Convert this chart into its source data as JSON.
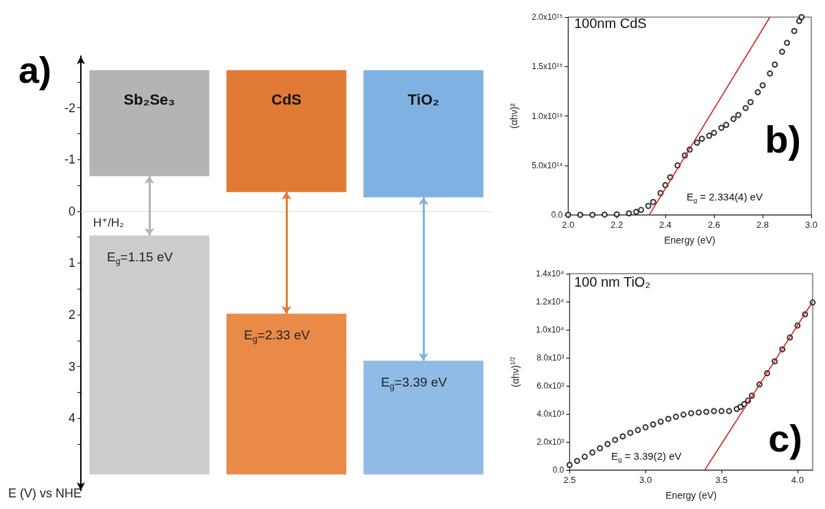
{
  "chart_data": [
    {
      "type": "bar",
      "title": "a)",
      "ylabel": "E (V) vs NHE",
      "categories": [
        "Sb₂Se₃",
        "CdS",
        "TiO₂"
      ],
      "series": [
        {
          "values": [
            2.05,
            2.36,
            2.46
          ],
          "base": [
            -2.73,
            -2.73,
            -2.73
          ],
          "colors": [
            "#b4b4b4",
            "#e07a34",
            "#7fb2e2"
          ]
        },
        {
          "values": [
            4.62,
            3.11,
            2.2
          ],
          "base": [
            0.47,
            1.98,
            2.89
          ],
          "colors": [
            "#cccccc",
            "#e98a48",
            "#8fbbe6"
          ]
        }
      ],
      "ylim": [
        5.4,
        -3.0
      ],
      "yticks": [
        {
          "value": -2.5,
          "label": null
        },
        -2,
        {
          "value": -1.5,
          "label": null
        },
        -1,
        {
          "value": -0.5,
          "label": null
        },
        0,
        {
          "value": 0.5,
          "label": null
        },
        1,
        {
          "value": 1.5,
          "label": null
        },
        2,
        {
          "value": 2.5,
          "label": null
        },
        3,
        {
          "value": 3.5,
          "label": null
        },
        4,
        {
          "value": 4.5,
          "label": null
        }
      ],
      "ref_lines": [
        {
          "axis": "y",
          "value": 0,
          "label": "H⁺/H₂",
          "line_style": "dotted",
          "color": "#bbbbbb"
        }
      ],
      "annotations": [
        {
          "text": "E$_{g}$=1.15 eV",
          "x": "Sb₂Se₃",
          "y": 0.47
        },
        {
          "text": "E$_{g}$=2.33 eV",
          "x": "CdS",
          "y": 1.98
        },
        {
          "text": "E$_{g}$=3.39 eV",
          "x": "TiO₂",
          "y": 2.89
        }
      ],
      "grid": false
    },
    {
      "type": "scatter",
      "title": "b)",
      "xlabel": "Energy (eV)",
      "ylabel": "(αhν)²",
      "grid": false,
      "annotations": [
        "100nm CdS",
        "E$_{g}$ = 2.334(4) eV"
      ],
      "xlim": [
        2,
        3
      ],
      "xticks": [
        {
          "value": 2,
          "label": "2.0"
        },
        2.2,
        2.4,
        2.6,
        2.8,
        {
          "value": 3,
          "label": "3.0"
        }
      ],
      "ylim": [
        0,
        2000000000000000.0
      ],
      "yticks": [
        {
          "value": 0,
          "label": "0.0"
        },
        {
          "value": 500000000000000.0,
          "label": "5.0x10¹⁴"
        },
        {
          "value": 1000000000000000.0,
          "label": "1.0x10¹⁵"
        },
        {
          "value": 1500000000000000.0,
          "label": "1.5x10¹⁵"
        },
        {
          "value": 2000000000000000.0,
          "label": "2.0x10¹⁵"
        }
      ],
      "series": [
        {
          "color": "#000000",
          "marker": "circle",
          "x": [
            2.0,
            2.05,
            2.1,
            2.15,
            2.2,
            2.25,
            2.28,
            2.3,
            2.33,
            2.35,
            2.38,
            2.4,
            2.42,
            2.45,
            2.48,
            2.5,
            2.53,
            2.55,
            2.58,
            2.6,
            2.63,
            2.65,
            2.68,
            2.7,
            2.73,
            2.75,
            2.78,
            2.8,
            2.83,
            2.85,
            2.88,
            2.9,
            2.93,
            2.95,
            2.96
          ],
          "values": [
            0,
            0,
            0,
            2000000000000.0,
            5000000000000.0,
            15000000000000.0,
            30000000000000.0,
            50000000000000.0,
            90000000000000.0,
            130000000000000.0,
            220000000000000.0,
            300000000000000.0,
            380000000000000.0,
            500000000000000.0,
            600000000000000.0,
            660000000000000.0,
            730000000000000.0,
            770000000000000.0,
            800000000000000.0,
            830000000000000.0,
            880000000000000.0,
            910000000000000.0,
            970000000000000.0,
            1010000000000000.0,
            1080000000000000.0,
            1140000000000000.0,
            1240000000000000.0,
            1310000000000000.0,
            1430000000000000.0,
            1520000000000000.0,
            1650000000000000.0,
            1740000000000000.0,
            1860000000000000.0,
            1960000000000000.0,
            2000000000000000.0
          ]
        },
        {
          "type": "line",
          "color": "#d01c1c",
          "x": [
            2.334,
            2.83
          ],
          "values": [
            0,
            2000000000000000.0
          ]
        }
      ]
    },
    {
      "type": "scatter",
      "title": "c)",
      "xlabel": "Energy (eV)",
      "ylabel": "(αhν)$^{1/2}$",
      "grid": false,
      "annotations": [
        "100 nm TiO₂",
        "E$_{g}$ = 3.39(2) eV"
      ],
      "xlim": [
        2.5,
        4.1
      ],
      "xticks": [
        2.5,
        {
          "value": 3,
          "label": "3.0"
        },
        3.5,
        {
          "value": 4,
          "label": "4.0"
        }
      ],
      "ylim": [
        0,
        14000
      ],
      "yticks": [
        {
          "value": 0,
          "label": "0.0"
        },
        {
          "value": 2000,
          "label": "2.0x10³"
        },
        {
          "value": 4000,
          "label": "4.0x10³"
        },
        {
          "value": 6000,
          "label": "6.0x10³"
        },
        {
          "value": 8000,
          "label": "8.0x10³"
        },
        {
          "value": 10000,
          "label": "1.0x10⁴"
        },
        {
          "value": 12000,
          "label": "1.2x10⁴"
        },
        {
          "value": 14000,
          "label": "1.4x10⁴"
        }
      ],
      "series": [
        {
          "color": "#000000",
          "marker": "circle",
          "x": [
            2.5,
            2.55,
            2.6,
            2.65,
            2.7,
            2.75,
            2.8,
            2.85,
            2.9,
            2.95,
            3.0,
            3.05,
            3.1,
            3.15,
            3.2,
            3.25,
            3.3,
            3.35,
            3.4,
            3.45,
            3.5,
            3.55,
            3.6,
            3.625,
            3.65,
            3.675,
            3.7,
            3.75,
            3.8,
            3.85,
            3.9,
            3.95,
            4.0,
            4.05,
            4.1
          ],
          "values": [
            360,
            650,
            950,
            1250,
            1550,
            1850,
            2150,
            2400,
            2650,
            2850,
            3050,
            3250,
            3450,
            3650,
            3800,
            3950,
            4050,
            4100,
            4150,
            4200,
            4200,
            4200,
            4350,
            4500,
            4700,
            4950,
            5300,
            6100,
            6900,
            7750,
            8600,
            9450,
            10300,
            11100,
            11950
          ]
        },
        {
          "type": "line",
          "color": "#d01c1c",
          "x": [
            3.39,
            4.1
          ],
          "values": [
            0,
            12000
          ]
        }
      ]
    }
  ]
}
